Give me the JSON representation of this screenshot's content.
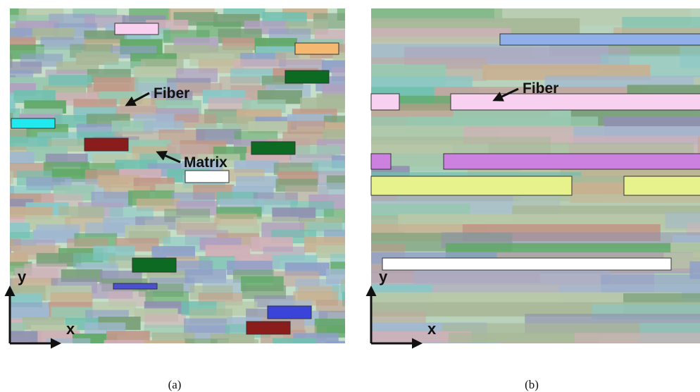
{
  "panels": [
    {
      "annotations": [
        "Fiber",
        "Matrix"
      ],
      "axes": {
        "y": "y",
        "x": "x"
      },
      "caption": "(a)"
    },
    {
      "annotations": [
        "Fiber"
      ],
      "axes": {
        "y": "y",
        "x": "x"
      },
      "caption": "(b)"
    }
  ]
}
